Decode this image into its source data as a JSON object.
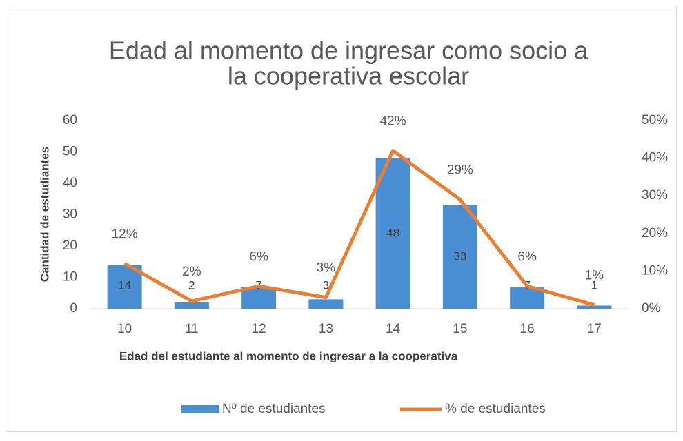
{
  "chart_data": {
    "type": "bar_line",
    "title": [
      "Edad al momento de ingresar como socio a",
      "la cooperativa escolar"
    ],
    "x_label": "Edad del estudiante al momento de ingresar a la cooperativa",
    "y_label": "Cantidad de estudiantes",
    "categories": [
      "10",
      "11",
      "12",
      "13",
      "14",
      "15",
      "16",
      "17"
    ],
    "series": [
      {
        "name": "Nº de estudiantes",
        "type": "bar",
        "color": "#4a8fd4",
        "values": [
          14,
          2,
          7,
          3,
          48,
          33,
          7,
          1
        ]
      },
      {
        "name": "% de estudiantes",
        "type": "line",
        "axis": "y2",
        "color": "#ed7d31",
        "values": [
          12,
          2,
          6,
          3,
          42,
          29,
          6,
          1
        ],
        "value_labels": [
          "12%",
          "2%",
          "6%",
          "3%",
          "42%",
          "29%",
          "6%",
          "1%"
        ]
      }
    ],
    "ylim": [
      0,
      60
    ],
    "yticks": [
      0,
      10,
      20,
      30,
      40,
      50,
      60
    ],
    "y2lim": [
      0,
      50
    ],
    "y2ticks": [
      {
        "value": 0,
        "label": "0%"
      },
      {
        "value": 10,
        "label": "10%"
      },
      {
        "value": 20,
        "label": "20%"
      },
      {
        "value": 30,
        "label": "30%"
      },
      {
        "value": 40,
        "label": "40%"
      },
      {
        "value": 50,
        "label": "50%"
      }
    ],
    "legend": "bottom"
  }
}
